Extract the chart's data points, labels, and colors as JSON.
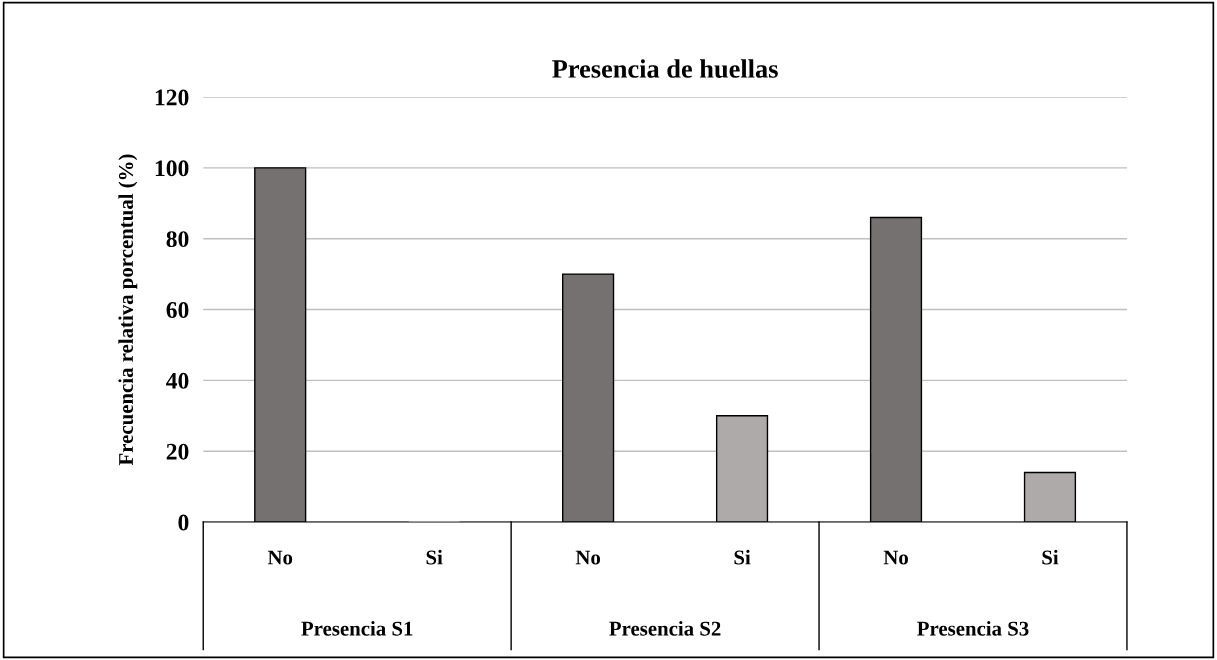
{
  "chart_data": {
    "type": "bar",
    "title": "Presencia de huellas",
    "ylabel": "Frecuencia relativa porcentual (%)",
    "categories": [
      "No",
      "Si",
      "No",
      "Si",
      "No",
      "Si"
    ],
    "values": [
      100,
      0,
      70,
      30,
      86,
      14
    ],
    "colors": [
      "#767171",
      "#aeaaaa",
      "#767171",
      "#aeaaaa",
      "#767171",
      "#aeaaaa"
    ],
    "annotations": [
      "Presencia S1",
      "Presencia S2",
      "Presencia S3"
    ],
    "ylim": [
      0,
      120
    ],
    "yticks": [
      0,
      20,
      40,
      60,
      80,
      100,
      120
    ],
    "grid": "y"
  }
}
